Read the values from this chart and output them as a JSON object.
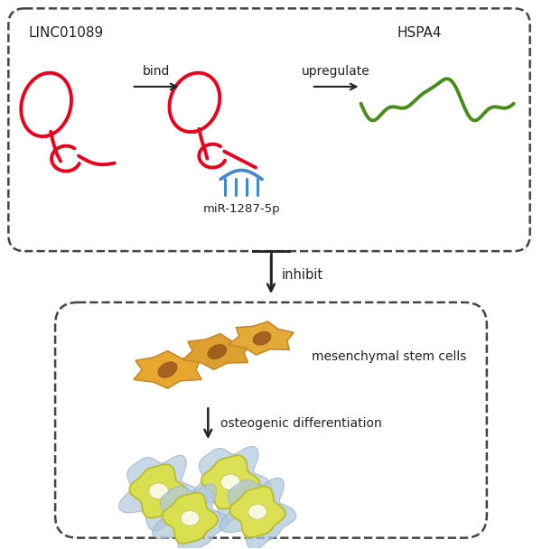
{
  "background_color": "#ffffff",
  "label_linc": "LINC01089",
  "label_hspa4": "HSPA4",
  "label_mir": "miR-1287-5p",
  "label_bind": "bind",
  "label_upregulate": "upregulate",
  "label_inhibit": "inhibit",
  "label_osteo": "osteogenic differentiation",
  "label_msc": "mesenchymal stem cells",
  "red_color": "#e8001c",
  "green_color": "#4a8c1c",
  "blue_color": "#4488cc",
  "arrow_color": "#222222",
  "box_border_color": "#444444",
  "text_color": "#222222"
}
